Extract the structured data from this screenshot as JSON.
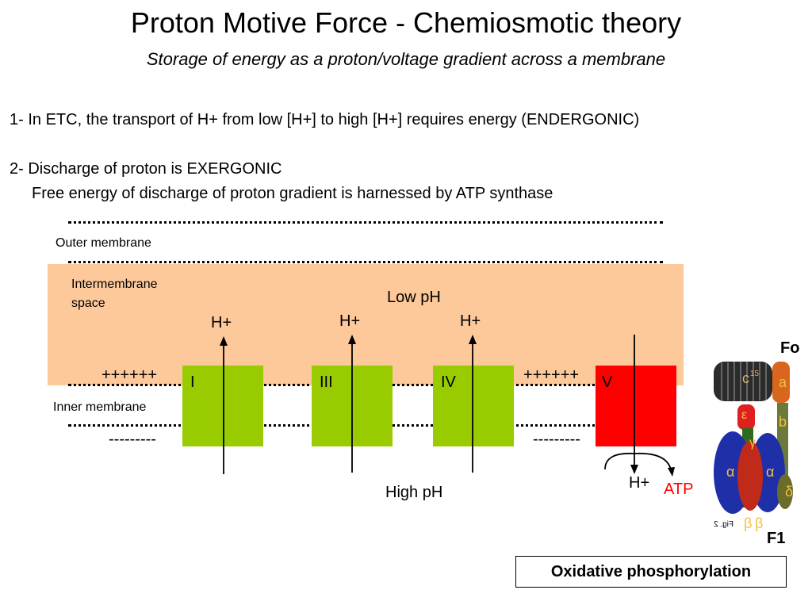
{
  "header": {
    "title": "Proton Motive Force  - Chemiosmotic theory",
    "subtitle": "Storage of energy as a proton/voltage gradient across a membrane"
  },
  "points": {
    "point1": "1- In ETC, the transport of H+ from low [H+] to high [H+] requires energy (ENDERGONIC)",
    "point2": "2- Discharge of proton is EXERGONIC",
    "point2_detail": "Free energy of discharge of proton gradient is harnessed by ATP synthase"
  },
  "diagram": {
    "outer_membrane_label": "Outer membrane",
    "intermembrane_label_line1": "Intermembrane",
    "intermembrane_label_line2": "space",
    "inner_membrane_label": "Inner membrane",
    "low_ph": "Low pH",
    "high_ph": "High pH",
    "positive_charge_left": "++++++",
    "positive_charge_right": "++++++",
    "negative_charge_left": "---------",
    "negative_charge_right": "---------",
    "proton": "H+",
    "atp": "ATP",
    "complexes": [
      "I",
      "III",
      "IV",
      "V"
    ],
    "colors": {
      "pumps": "#99cc00",
      "synthase": "#ff0000",
      "intermembrane": "#fdc89a",
      "atp": "#ff0000"
    }
  },
  "synthase": {
    "fo_label": "Fo",
    "f1_label": "F1",
    "fig_label": "Fig. 2",
    "subunit_c": "c",
    "subunit_c_count": "15",
    "subunit_epsilon": "ε",
    "subunit_gamma": "γ",
    "subunit_alpha": "α",
    "subunit_beta": "β",
    "subunit_a": "a",
    "subunit_b": "b",
    "subunit_delta": "δ"
  },
  "caption": "Oxidative phosphorylation"
}
